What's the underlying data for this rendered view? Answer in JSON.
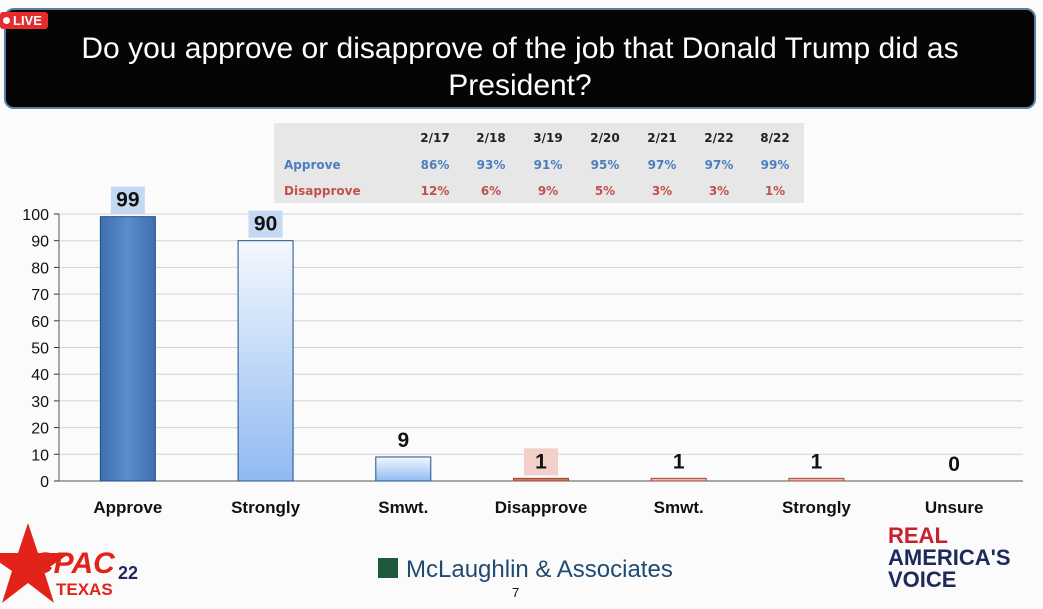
{
  "live_badge": "LIVE",
  "title": "Do you approve or disapprove of the job that Donald Trump did as President?",
  "trend_table": {
    "dates": [
      "2/17",
      "2/18",
      "3/19",
      "2/20",
      "2/21",
      "2/22",
      "8/22"
    ],
    "rows": [
      {
        "label": "Approve",
        "color": "#4a7ebf",
        "values": [
          "86%",
          "93%",
          "91%",
          "95%",
          "97%",
          "97%",
          "99%"
        ]
      },
      {
        "label": "Disapprove",
        "color": "#c0504d",
        "values": [
          "12%",
          "6%",
          "9%",
          "5%",
          "3%",
          "3%",
          "1%"
        ]
      }
    ]
  },
  "chart_data": {
    "type": "bar",
    "title": "",
    "xlabel": "",
    "ylabel": "",
    "categories": [
      "Approve",
      "Strongly",
      "Smwt.",
      "Disapprove",
      "Smwt.",
      "Strongly",
      "Unsure"
    ],
    "values": [
      99,
      90,
      9,
      1,
      1,
      1,
      0
    ],
    "labels": [
      "99",
      "90",
      "9",
      "1",
      "1",
      "1",
      "0"
    ],
    "ylim": [
      0,
      100
    ],
    "yticks": [
      0,
      10,
      20,
      30,
      40,
      50,
      60,
      70,
      80,
      90,
      100
    ],
    "grid": true,
    "bar_colors": [
      "#4a7ebf",
      "#cfe0f7",
      "#d6e5f7",
      "#c9785e",
      "#e8b8a8",
      "#e8b8a8",
      "#ffffff"
    ],
    "highlight_labels": [
      true,
      true,
      false,
      true,
      false,
      false,
      false
    ]
  },
  "footer": {
    "left_logo_text": [
      "CPAC",
      "22",
      "TEXAS"
    ],
    "center_logo": "McLaughlin & Associates",
    "page_number": "7",
    "right_logo": [
      "REAL",
      "AMERICA'S",
      "VOICE"
    ]
  }
}
